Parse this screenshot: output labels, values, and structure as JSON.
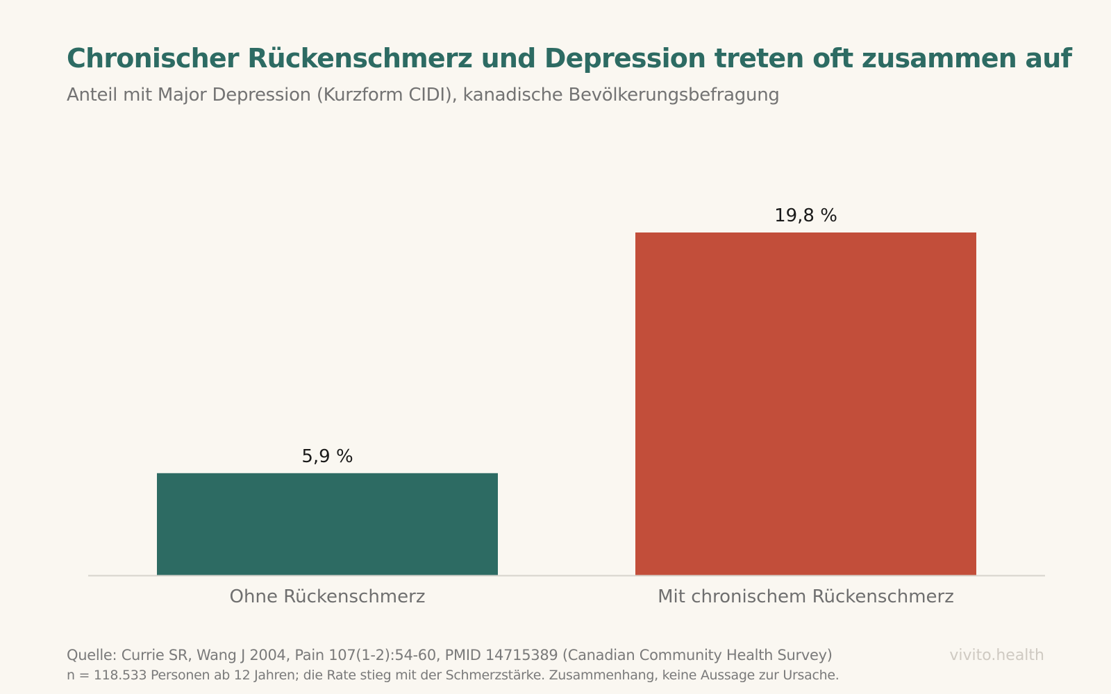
{
  "title": "Chronischer Rückenschmerz und Depression treten oft zusammen auf",
  "subtitle": "Anteil mit Major Depression (Kurzform CIDI), kanadische Bevölkerungsbefragung",
  "source": "Quelle: Currie SR, Wang J 2004, Pain 107(1-2):54-60, PMID 14715389 (Canadian Community Health Survey)",
  "note": "n = 118.533 Personen ab 12 Jahren; die Rate stieg mit der Schmerzstärke. Zusammenhang, keine Aussage zur Ursache.",
  "brand": "vivito.health",
  "colors": {
    "background": "#faf7f1",
    "title": "#2d6b63",
    "bar_without": "#2d6b63",
    "bar_with": "#c24e3a",
    "axis": "#d6d3cc"
  },
  "chart_data": {
    "type": "bar",
    "categories": [
      "Ohne Rückenschmerz",
      "Mit chronischem Rückenschmerz"
    ],
    "values": [
      5.9,
      19.8
    ],
    "value_labels": [
      "5,9 %",
      "19,8 %"
    ],
    "unit": "%",
    "colors": [
      "#2d6b63",
      "#c24e3a"
    ],
    "ylim": [
      0,
      22
    ],
    "grid": false,
    "legend": "none"
  }
}
